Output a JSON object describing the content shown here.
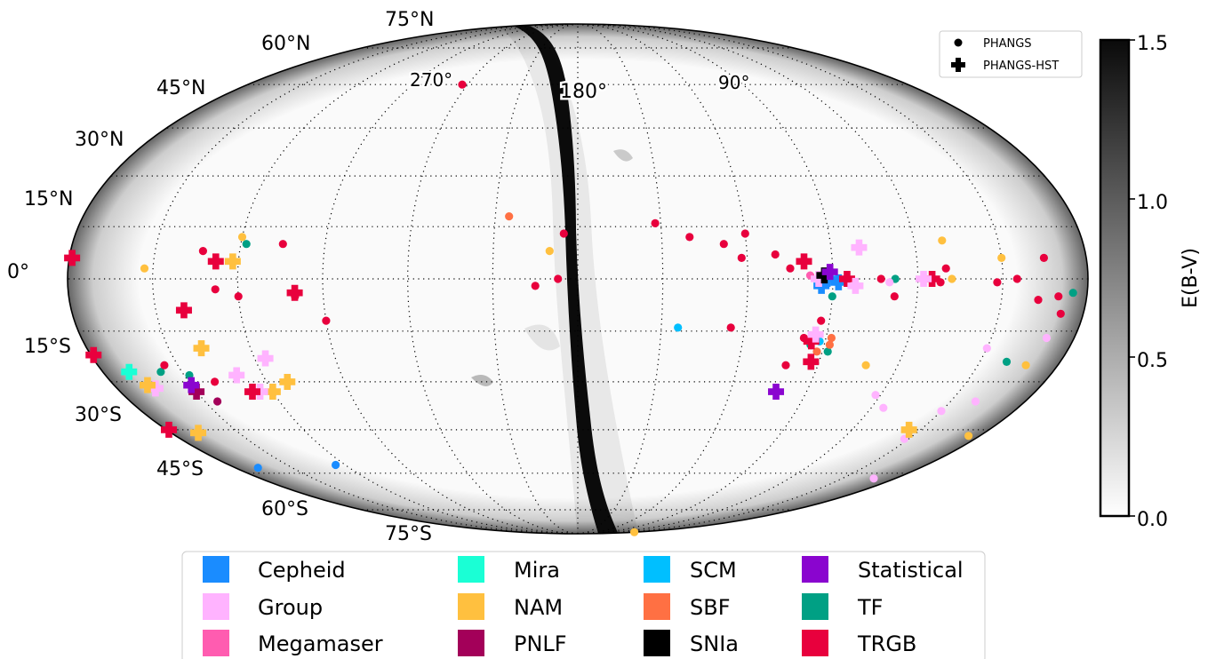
{
  "chart_data": {
    "type": "scatter",
    "projection": "mollweide (galactic)",
    "grid": true,
    "latitude_tick_labels": [
      "75°N",
      "60°N",
      "45°N",
      "30°N",
      "15°N",
      "0°",
      "15°S",
      "30°S",
      "45°S",
      "60°S",
      "75°S"
    ],
    "longitude_tick_labels": [
      "270°",
      "180°",
      "90°"
    ],
    "colorbar": {
      "label": "E(B-V)",
      "min": 0.0,
      "max": 1.5,
      "tick_labels": [
        "0.0",
        "0.5",
        "1.0",
        "1.5"
      ]
    },
    "marker_legend": {
      "placement": "top-right",
      "entries": [
        {
          "label": "PHANGS",
          "marker": "circle"
        },
        {
          "label": "PHANGS-HST",
          "marker": "plus"
        }
      ]
    },
    "method_legend": {
      "placement": "bottom",
      "entries": [
        {
          "label": "Cepheid",
          "color": "#1a8cff"
        },
        {
          "label": "Group",
          "color": "#ffb3ff"
        },
        {
          "label": "Megamaser",
          "color": "#ff5cb0"
        },
        {
          "label": "Mira",
          "color": "#1affd5"
        },
        {
          "label": "NAM",
          "color": "#ffc03f"
        },
        {
          "label": "PNLF",
          "color": "#a30059"
        },
        {
          "label": "SCM",
          "color": "#00bfff"
        },
        {
          "label": "SBF",
          "color": "#ff7043"
        },
        {
          "label": "SNIa",
          "color": "#000000"
        },
        {
          "label": "Statistical",
          "color": "#8a05cf"
        },
        {
          "label": "TF",
          "color": "#00a084"
        },
        {
          "label": "TRGB",
          "color": "#e8003d"
        }
      ]
    },
    "series": [
      {
        "name": "PHANGS",
        "marker": "circle",
        "points": [
          {
            "lon": 63,
            "lat": 60,
            "method": "TRGB"
          },
          {
            "lon": -28,
            "lat": 16,
            "method": "TRGB"
          },
          {
            "lon": -40,
            "lat": 12,
            "method": "TRGB"
          },
          {
            "lon": -52,
            "lat": 10,
            "method": "TRGB"
          },
          {
            "lon": -58,
            "lat": 6,
            "method": "TRGB"
          },
          {
            "lon": -60,
            "lat": 13,
            "method": "TRGB"
          },
          {
            "lon": -70,
            "lat": 7,
            "method": "TRGB"
          },
          {
            "lon": -75,
            "lat": 3,
            "method": "TRGB"
          },
          {
            "lon": -82,
            "lat": 1,
            "method": "Megamaser"
          },
          {
            "lon": -112,
            "lat": 0,
            "method": "TF"
          },
          {
            "lon": -107,
            "lat": 0,
            "method": "TRGB"
          },
          {
            "lon": -155,
            "lat": 0,
            "method": "TRGB"
          },
          {
            "lon": -163,
            "lat": -6,
            "method": "TRGB"
          },
          {
            "lon": -55,
            "lat": -14,
            "method": "TRGB"
          },
          {
            "lon": -36,
            "lat": -14,
            "method": "SCM"
          },
          {
            "lon": -78,
            "lat": -25,
            "method": "TRGB"
          },
          {
            "lon": -130,
            "lat": 11,
            "method": "NAM"
          },
          {
            "lon": -165,
            "lat": 6,
            "method": "TRGB"
          },
          {
            "lon": -130,
            "lat": 3,
            "method": "TRGB"
          },
          {
            "lon": -132,
            "lat": 0,
            "method": "NAM"
          },
          {
            "lon": -128,
            "lat": -1,
            "method": "TRGB"
          },
          {
            "lon": -110,
            "lat": -1,
            "method": "Group"
          },
          {
            "lon": -112,
            "lat": -5,
            "method": "TRGB"
          },
          {
            "lon": -90,
            "lat": -5,
            "method": "TF"
          },
          {
            "lon": -92,
            "lat": -21,
            "method": "TF"
          },
          {
            "lon": -87,
            "lat": -12,
            "method": "TRGB"
          },
          {
            "lon": -85,
            "lat": -19,
            "method": "TF"
          },
          {
            "lon": -92,
            "lat": -17,
            "method": "SBF"
          },
          {
            "lon": -108,
            "lat": -25,
            "method": "NAM"
          },
          {
            "lon": -118,
            "lat": -34,
            "method": "Group"
          },
          {
            "lon": -125,
            "lat": -38,
            "method": "Group"
          },
          {
            "lon": -148,
            "lat": -48,
            "method": "Group"
          },
          {
            "lon": -150,
            "lat": -20,
            "method": "Group"
          },
          {
            "lon": -150,
            "lat": 6,
            "method": "NAM"
          },
          {
            "lon": -175,
            "lat": -4,
            "method": "TF"
          },
          {
            "lon": -148,
            "lat": -1,
            "method": "TRGB"
          },
          {
            "lon": -88,
            "lat": -18,
            "method": "SCM"
          },
          {
            "lon": -88,
            "lat": -21,
            "method": "SBF"
          },
          {
            "lon": -92,
            "lat": -19,
            "method": "SBF"
          },
          {
            "lon": -82,
            "lat": -17,
            "method": "TRGB"
          },
          {
            "lon": 105,
            "lat": 10,
            "method": "TRGB"
          },
          {
            "lon": 120,
            "lat": 12,
            "method": "NAM"
          },
          {
            "lon": 118,
            "lat": 10,
            "method": "TF"
          },
          {
            "lon": 153,
            "lat": 3,
            "method": "NAM"
          },
          {
            "lon": 133,
            "lat": 8,
            "method": "TRGB"
          },
          {
            "lon": 128,
            "lat": -3,
            "method": "TRGB"
          },
          {
            "lon": 100,
            "lat": -5,
            "method": "TRGB"
          },
          {
            "lon": 90,
            "lat": -12,
            "method": "TRGB"
          },
          {
            "lon": 25,
            "lat": 18,
            "method": "SBF"
          },
          {
            "lon": 5,
            "lat": 13,
            "method": "TRGB"
          },
          {
            "lon": 10,
            "lat": 8,
            "method": "NAM"
          },
          {
            "lon": 7,
            "lat": 0,
            "method": "TRGB"
          },
          {
            "lon": 15,
            "lat": -2,
            "method": "TRGB"
          },
          {
            "lon": 120,
            "lat": -5,
            "method": "TRGB"
          },
          {
            "lon": 140,
            "lat": -30,
            "method": "TRGB"
          },
          {
            "lon": 148,
            "lat": -28,
            "method": "TF"
          },
          {
            "lon": 158,
            "lat": -27,
            "method": "TF"
          },
          {
            "lon": 145,
            "lat": -36,
            "method": "PNLF"
          },
          {
            "lon": -170,
            "lat": -17,
            "method": "Group"
          },
          {
            "lon": -150,
            "lat": -39,
            "method": "Group"
          },
          {
            "lon": -160,
            "lat": -36,
            "method": "Group"
          },
          {
            "lon": -168,
            "lat": -25,
            "method": "NAM"
          },
          {
            "lon": -160,
            "lat": -24,
            "method": "TF"
          },
          {
            "lon": -170,
            "lat": -5,
            "method": "TRGB"
          },
          {
            "lon": -172,
            "lat": -10,
            "method": "TRGB"
          },
          {
            "lon": -177,
            "lat": -95,
            "method": "NAM"
          },
          {
            "lon": 125,
            "lat": -57,
            "method": "Cepheid"
          },
          {
            "lon": 168,
            "lat": -58,
            "method": "Cepheid"
          },
          {
            "lon": -168,
            "lat": -62,
            "method": "Group"
          },
          {
            "lon": 155,
            "lat": -25,
            "method": "TRGB"
          },
          {
            "lon": -175,
            "lat": -47,
            "method": "NAM"
          }
        ]
      },
      {
        "name": "PHANGS-HST",
        "marker": "plus",
        "points": [
          {
            "lon": 128,
            "lat": 5,
            "method": "TRGB"
          },
          {
            "lon": 122,
            "lat": 5,
            "method": "NAM"
          },
          {
            "lon": 140,
            "lat": -9,
            "method": "TRGB"
          },
          {
            "lon": 138,
            "lat": -20,
            "method": "NAM"
          },
          {
            "lon": 120,
            "lat": -33,
            "method": "NAM"
          },
          {
            "lon": 112,
            "lat": -30,
            "method": "NAM"
          },
          {
            "lon": 130,
            "lat": -28,
            "method": "Group"
          },
          {
            "lon": 125,
            "lat": -33,
            "method": "Group"
          },
          {
            "lon": 128,
            "lat": -33,
            "method": "TRGB"
          },
          {
            "lon": 150,
            "lat": -33,
            "method": "PNLF"
          },
          {
            "lon": 150,
            "lat": -31,
            "method": "Statistical"
          },
          {
            "lon": 165,
            "lat": -32,
            "method": "Group"
          },
          {
            "lon": 167,
            "lat": -31,
            "method": "NAM"
          },
          {
            "lon": 170,
            "lat": -27,
            "method": "Mira"
          },
          {
            "lon": 168,
            "lat": -46,
            "method": "NAM"
          },
          {
            "lon": 205,
            "lat": 6,
            "method": "TRGB"
          },
          {
            "lon": 215,
            "lat": -22,
            "method": "TRGB"
          },
          {
            "lon": 220,
            "lat": -45,
            "method": "TRGB"
          },
          {
            "lon": 116,
            "lat": -23,
            "method": "Group"
          },
          {
            "lon": 100,
            "lat": -4,
            "method": "TRGB"
          },
          {
            "lon": -125,
            "lat": 0,
            "method": "TRGB"
          },
          {
            "lon": -122,
            "lat": 0,
            "method": "Group"
          },
          {
            "lon": -100,
            "lat": 9,
            "method": "Group"
          },
          {
            "lon": -92,
            "lat": -1,
            "method": "Cepheid"
          },
          {
            "lon": -95,
            "lat": 0,
            "method": "TRGB"
          },
          {
            "lon": -98,
            "lat": -2,
            "method": "Group"
          },
          {
            "lon": -86,
            "lat": -2,
            "method": "Cepheid"
          },
          {
            "lon": -88,
            "lat": 0,
            "method": "Cepheid"
          },
          {
            "lon": -85,
            "lat": 0,
            "method": "Group"
          },
          {
            "lon": -87,
            "lat": 1,
            "method": "SNIa"
          },
          {
            "lon": -89,
            "lat": 2,
            "method": "Statistical"
          },
          {
            "lon": -80,
            "lat": 5,
            "method": "TRGB"
          },
          {
            "lon": -85,
            "lat": -18,
            "method": "TRGB"
          },
          {
            "lon": -86,
            "lat": -16,
            "method": "Group"
          },
          {
            "lon": -87,
            "lat": -24,
            "method": "TRGB"
          },
          {
            "lon": -78,
            "lat": -33,
            "method": "Statistical"
          },
          {
            "lon": -145,
            "lat": -45,
            "method": "NAM"
          }
        ]
      }
    ]
  }
}
